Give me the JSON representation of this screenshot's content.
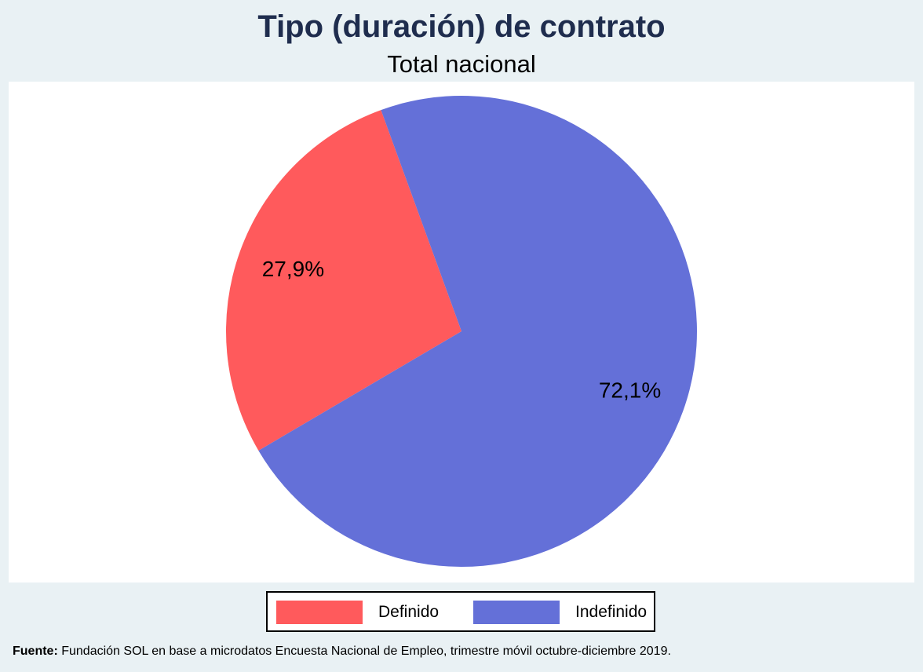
{
  "chart_data": {
    "type": "pie",
    "title": "Tipo (duración) de contrato",
    "subtitle": "Total nacional",
    "categories": [
      "Definido",
      "Indefinido"
    ],
    "values": [
      27.9,
      72.1
    ],
    "data_labels": [
      "27,9%",
      "72,1%"
    ],
    "colors": [
      "#ff5a5c",
      "#6470d8"
    ],
    "legend_position": "bottom",
    "start_angle_deg": -22,
    "direction": "counterclockwise"
  },
  "legend": {
    "items": [
      {
        "label": "Definido",
        "color": "#ff5a5c"
      },
      {
        "label": "Indefinido",
        "color": "#6470d8"
      }
    ]
  },
  "source": {
    "label": "Fuente:",
    "text": " Fundación SOL en base a microdatos Encuesta Nacional de Empleo, trimestre móvil octubre-diciembre 2019."
  }
}
